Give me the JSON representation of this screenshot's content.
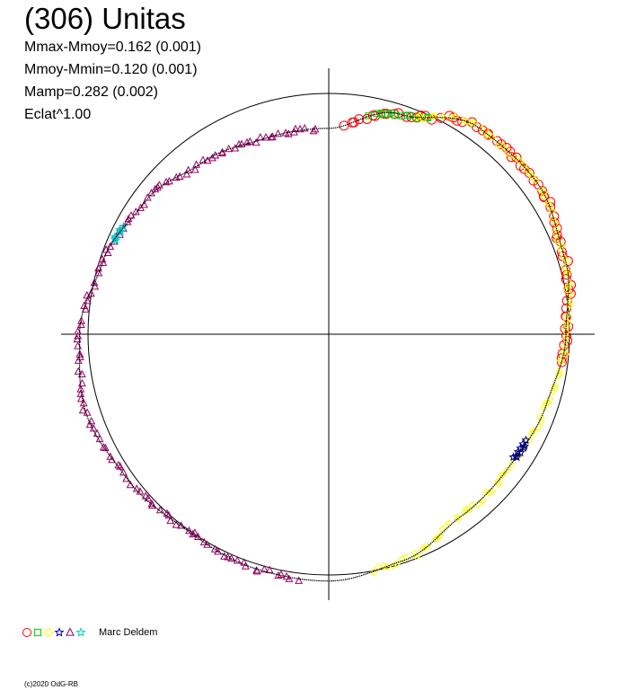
{
  "header": {
    "title": "(306) Unitas",
    "stats": [
      "Mmax-Mmoy=0.162 (0.001)",
      "Mmoy-Mmin=0.120 (0.001)",
      "Mamp=0.282 (0.002)",
      "Eclat^1.00"
    ]
  },
  "legend": {
    "observer": "Marc Deldem",
    "symbols": [
      {
        "symbol": "circle",
        "color": "#ff0000"
      },
      {
        "symbol": "square",
        "color": "#00cc00"
      },
      {
        "symbol": "diamond",
        "color": "#ffff00"
      },
      {
        "symbol": "star",
        "color": "#000099"
      },
      {
        "symbol": "triangle",
        "color": "#990066"
      },
      {
        "symbol": "star",
        "color": "#00cccc"
      }
    ]
  },
  "footer": {
    "copyright": "(c)2020 OdG-RB"
  },
  "chart_data": {
    "type": "scatter",
    "projection": "polar",
    "title": "(306) Unitas",
    "description_of_axes": "angle = rotational phase (0 at top, clockwise); radius = relative brightness; circle = mean brightness",
    "reference_radius": 1.0,
    "axes": {
      "cross_hair": true,
      "reference_circle": true
    },
    "fit_curve": {
      "color": "#000000",
      "points": [
        {
          "phase": 0.0,
          "r": 0.855
        },
        {
          "phase": 0.05,
          "r": 0.96
        },
        {
          "phase": 0.1,
          "r": 1.06
        },
        {
          "phase": 0.15,
          "r": 1.07
        },
        {
          "phase": 0.2,
          "r": 1.03
        },
        {
          "phase": 0.25,
          "r": 0.985
        },
        {
          "phase": 0.3,
          "r": 0.95
        },
        {
          "phase": 0.35,
          "r": 0.93
        },
        {
          "phase": 0.4,
          "r": 0.935
        },
        {
          "phase": 0.45,
          "r": 0.99
        },
        {
          "phase": 0.5,
          "r": 1.025
        },
        {
          "phase": 0.55,
          "r": 1.02
        },
        {
          "phase": 0.6,
          "r": 1.005
        },
        {
          "phase": 0.65,
          "r": 1.03
        },
        {
          "phase": 0.7,
          "r": 1.06
        },
        {
          "phase": 0.75,
          "r": 1.035
        },
        {
          "phase": 0.8,
          "r": 0.985
        },
        {
          "phase": 0.85,
          "r": 0.94
        },
        {
          "phase": 0.9,
          "r": 0.885
        },
        {
          "phase": 0.95,
          "r": 0.855
        },
        {
          "phase": 1.0,
          "r": 0.855
        }
      ]
    },
    "series": [
      {
        "symbol": "circle",
        "color": "#ff0000",
        "phase_range": [
          0.012,
          0.27
        ],
        "count": 70
      },
      {
        "symbol": "square",
        "color": "#00cc00",
        "phase_range": [
          0.03,
          0.07
        ],
        "count": 14
      },
      {
        "symbol": "diamond",
        "color": "#ffff00",
        "phase_range": [
          0.06,
          0.47
        ],
        "count": 120
      },
      {
        "symbol": "star",
        "color": "#000099",
        "phase_range": [
          0.33,
          0.345
        ],
        "count": 10
      },
      {
        "symbol": "triangle",
        "color": "#990066",
        "phase_range": [
          0.52,
          0.99
        ],
        "count": 130
      },
      {
        "symbol": "star",
        "color": "#00cccc",
        "phase_range": [
          0.815,
          0.825
        ],
        "count": 8
      }
    ]
  }
}
